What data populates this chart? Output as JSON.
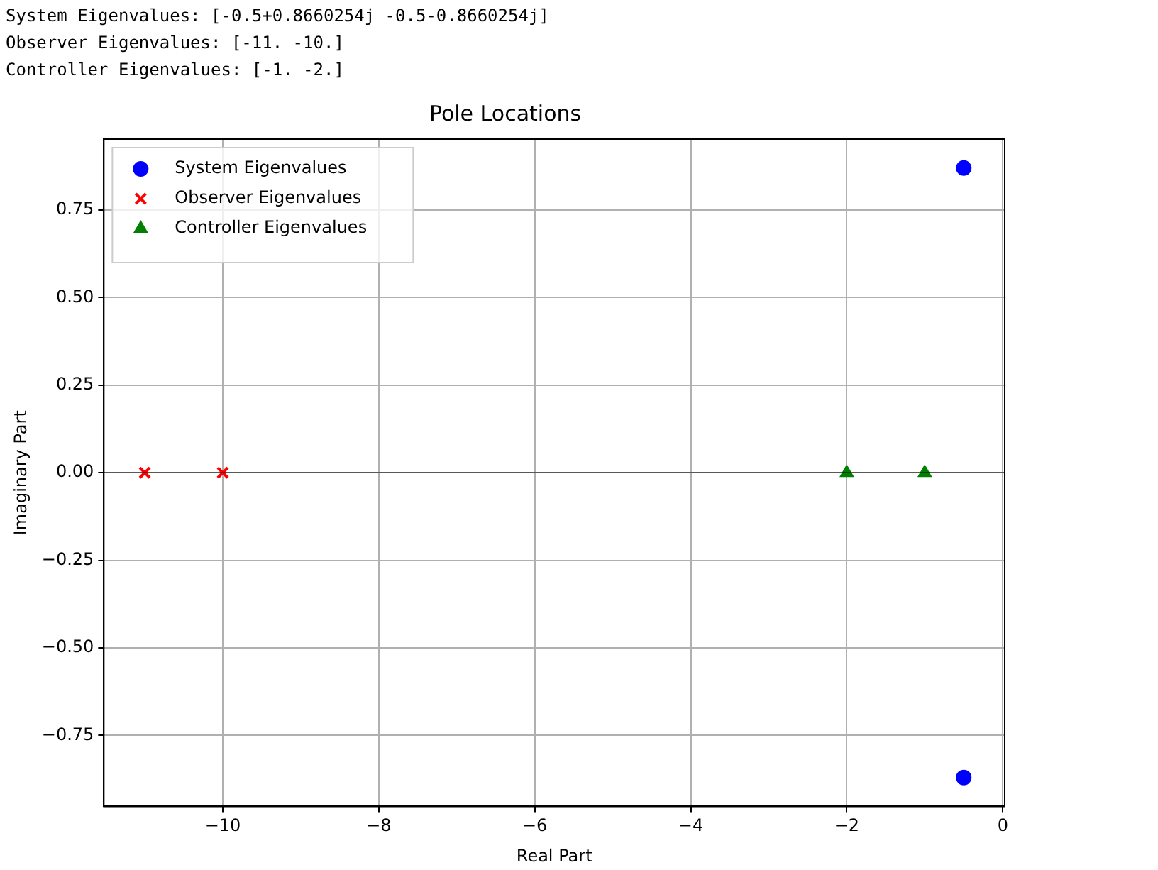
{
  "chart_data": {
    "type": "scatter",
    "title": "Pole Locations",
    "xlabel": "Real Part",
    "ylabel": "Imaginary Part",
    "annotations": [
      "System Eigenvalues: [-0.5+0.8660254j -0.5-0.8660254j]",
      "Observer Eigenvalues: [-11. -10.]",
      "Controller Eigenvalues: [-1. -2.]"
    ],
    "series": [
      {
        "name": "System Eigenvalues",
        "color": "#0000ff",
        "marker": "circle",
        "x": [
          -0.5,
          -0.5
        ],
        "values": [
          0.87,
          -0.87
        ]
      },
      {
        "name": "Observer Eigenvalues",
        "color": "#ff0000",
        "marker": "cross",
        "x": [
          -11,
          -10
        ],
        "values": [
          0,
          0
        ]
      },
      {
        "name": "Controller Eigenvalues",
        "color": "#008000",
        "marker": "triangle",
        "x": [
          -1,
          -2
        ],
        "values": [
          0,
          0
        ]
      }
    ],
    "xlim": [
      -11.525,
      0.025
    ],
    "xticks": [
      -10,
      -8,
      -6,
      -4,
      -2,
      0
    ],
    "ylim": [
      -0.9526,
      0.9526
    ],
    "yticks": [
      -0.75,
      {
        "value": -0.5,
        "label": "−0.50"
      },
      -0.25,
      {
        "value": 0,
        "label": "0.00"
      },
      0.25,
      {
        "value": 0.5,
        "label": "0.50"
      },
      0.75
    ],
    "ref_lines": [
      {
        "axis": "y",
        "value": 0,
        "color": "#000000"
      }
    ],
    "grid": true,
    "legend": "top left"
  }
}
